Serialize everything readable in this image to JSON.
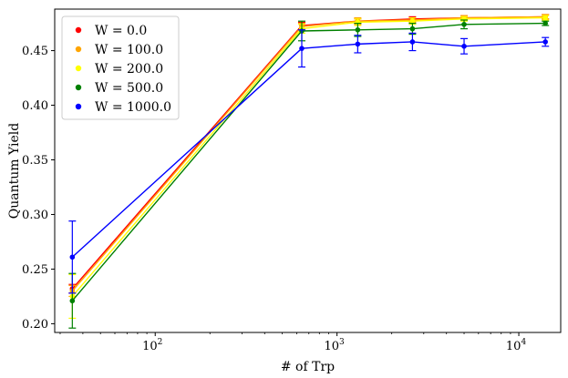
{
  "chart_data": {
    "type": "line",
    "title": "",
    "xlabel": "# of Trp",
    "ylabel": "Quantum Yield",
    "xscale": "log",
    "xlim": [
      28,
      17000
    ],
    "ylim": [
      0.192,
      0.488
    ],
    "x_major_ticks": [
      100,
      1000,
      10000
    ],
    "x_tick_labels": [
      {
        "base": "10",
        "exp": "2"
      },
      {
        "base": "10",
        "exp": "3"
      },
      {
        "base": "10",
        "exp": "4"
      }
    ],
    "y_ticks": [
      0.2,
      0.25,
      0.3,
      0.35,
      0.4,
      0.45
    ],
    "y_tick_labels": [
      "0.20",
      "0.25",
      "0.30",
      "0.35",
      "0.40",
      "0.45"
    ],
    "x": [
      35,
      640,
      1300,
      2600,
      5000,
      14000
    ],
    "legend_position": "upper-left",
    "series": [
      {
        "name": "W = 0.0",
        "color": "#ff0000",
        "values": [
          0.232,
          0.473,
          0.477,
          0.479,
          0.48,
          0.481
        ],
        "errors": [
          0.004,
          0.003,
          0.002,
          0.002,
          0.002,
          0.002
        ]
      },
      {
        "name": "W = 100.0",
        "color": "#ffa500",
        "values": [
          0.23,
          0.472,
          0.477,
          0.478,
          0.48,
          0.481
        ],
        "errors": [
          0.005,
          0.003,
          0.003,
          0.002,
          0.002,
          0.002
        ]
      },
      {
        "name": "W = 200.0",
        "color": "#ffff00",
        "values": [
          0.225,
          0.47,
          0.476,
          0.477,
          0.479,
          0.48
        ],
        "errors": [
          0.02,
          0.004,
          0.003,
          0.003,
          0.002,
          0.002
        ]
      },
      {
        "name": "W = 500.0",
        "color": "#008000",
        "values": [
          0.221,
          0.468,
          0.469,
          0.47,
          0.474,
          0.475
        ],
        "errors": [
          0.025,
          0.009,
          0.006,
          0.005,
          0.004,
          0.002
        ]
      },
      {
        "name": "W = 1000.0",
        "color": "#0000ff",
        "values": [
          0.261,
          0.452,
          0.456,
          0.458,
          0.454,
          0.458
        ],
        "errors": [
          0.033,
          0.017,
          0.008,
          0.008,
          0.007,
          0.004
        ]
      }
    ]
  }
}
